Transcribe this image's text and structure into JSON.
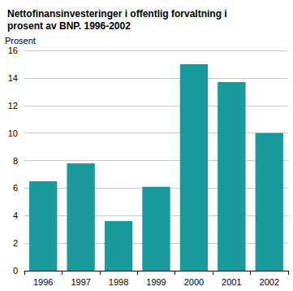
{
  "chart_data": {
    "type": "bar",
    "title": "Nettofinansinvesteringer i offentlig forvaltning i\nprosent av BNP. 1996-2002",
    "y_label": "Prosent",
    "categories": [
      "1996",
      "1997",
      "1998",
      "1999",
      "2000",
      "2001",
      "2002"
    ],
    "values": [
      6.5,
      7.8,
      3.6,
      6.1,
      15.0,
      13.7,
      10.0
    ],
    "color": "#1a9a9a",
    "ylim": [
      0,
      16
    ],
    "yticks": [
      0,
      2,
      4,
      6,
      8,
      10,
      12,
      14,
      16
    ],
    "grid": true
  }
}
